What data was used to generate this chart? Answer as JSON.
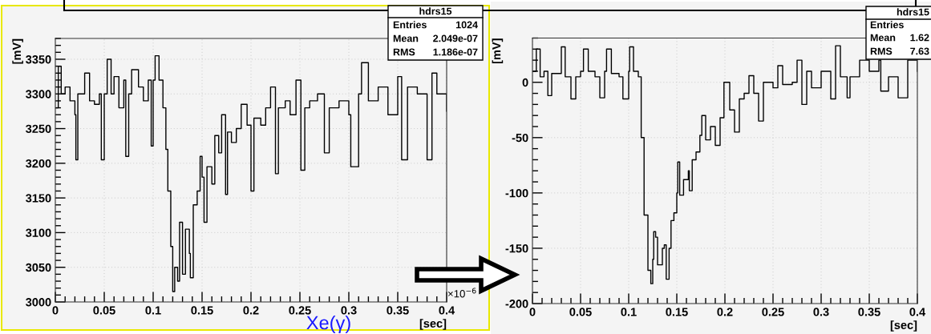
{
  "chart_data": [
    {
      "type": "step",
      "xlabel": "[sec]",
      "ylabel": "[mV]",
      "xlim": [
        0,
        0.4
      ],
      "ylim": [
        3000,
        3380
      ],
      "xticks": [
        0,
        0.05,
        0.1,
        0.15,
        0.2,
        0.25,
        0.3,
        0.35,
        0.4
      ],
      "yticks": [
        3000,
        3050,
        3100,
        3150,
        3200,
        3250,
        3300,
        3350
      ],
      "grid": true,
      "annotations": [
        "hdrs15",
        "Entries",
        "1024",
        "Mean",
        "2.049e-07",
        "RMS",
        "1.186e-07",
        "×10$^{−6}$",
        "Xe(γ)"
      ],
      "series": [
        {
          "color": "#000000",
          "x": [
            0,
            0.003,
            0.006,
            0.01,
            0.015,
            0.02,
            0.021,
            0.023,
            0.03,
            0.035,
            0.04,
            0.045,
            0.047,
            0.05,
            0.053,
            0.057,
            0.06,
            0.065,
            0.07,
            0.072,
            0.075,
            0.078,
            0.085,
            0.09,
            0.095,
            0.098,
            0.1,
            0.102,
            0.106,
            0.11,
            0.113,
            0.115,
            0.118,
            0.12,
            0.122,
            0.125,
            0.127,
            0.13,
            0.133,
            0.137,
            0.138,
            0.141,
            0.145,
            0.148,
            0.15,
            0.152,
            0.155,
            0.16,
            0.163,
            0.167,
            0.17,
            0.174,
            0.176,
            0.18,
            0.185,
            0.19,
            0.196,
            0.2,
            0.203,
            0.21,
            0.215,
            0.22,
            0.225,
            0.228,
            0.235,
            0.24,
            0.246,
            0.251,
            0.255,
            0.26,
            0.268,
            0.275,
            0.28,
            0.29,
            0.3,
            0.302,
            0.31,
            0.313,
            0.32,
            0.33,
            0.34,
            0.35,
            0.354,
            0.36,
            0.37,
            0.38,
            0.385,
            0.39,
            0.4
          ],
          "values": [
            3280,
            3340,
            3300,
            3310,
            3290,
            3270,
            3205,
            3300,
            3330,
            3290,
            3285,
            3300,
            3205,
            3300,
            3350,
            3300,
            3325,
            3280,
            3320,
            3210,
            3300,
            3335,
            3310,
            3290,
            3320,
            3225,
            3320,
            3355,
            3320,
            3280,
            3220,
            3160,
            3080,
            3015,
            3050,
            3030,
            3115,
            3040,
            3105,
            3070,
            3035,
            3140,
            3160,
            3210,
            3180,
            3115,
            3195,
            3170,
            3240,
            3215,
            3270,
            3155,
            3245,
            3230,
            3250,
            3285,
            3255,
            3160,
            3265,
            3255,
            3280,
            3310,
            3185,
            3280,
            3290,
            3270,
            3320,
            3190,
            3280,
            3290,
            3300,
            3215,
            3280,
            3290,
            3270,
            3195,
            3300,
            3345,
            3290,
            3310,
            3270,
            3325,
            3205,
            3310,
            3300,
            3205,
            3330,
            3300,
            3275
          ]
        }
      ]
    },
    {
      "type": "step",
      "xlabel": "[sec]",
      "ylabel": "[mV]",
      "xlim": [
        0,
        0.4
      ],
      "ylim": [
        -200,
        40
      ],
      "xticks": [
        0,
        0.05,
        0.1,
        0.15,
        0.2,
        0.25,
        0.3,
        0.35,
        0.4
      ],
      "yticks": [
        -200,
        -150,
        -100,
        -50,
        0
      ],
      "grid": true,
      "annotations": [
        "hdrs15",
        "Entries",
        "Mean",
        "1.62",
        "RMS",
        "7.63"
      ],
      "series": [
        {
          "color": "#000000",
          "x": [
            0,
            0.004,
            0.008,
            0.012,
            0.016,
            0.02,
            0.028,
            0.03,
            0.034,
            0.04,
            0.045,
            0.05,
            0.053,
            0.058,
            0.065,
            0.07,
            0.075,
            0.077,
            0.082,
            0.09,
            0.094,
            0.1,
            0.101,
            0.105,
            0.11,
            0.113,
            0.116,
            0.12,
            0.123,
            0.125,
            0.126,
            0.128,
            0.13,
            0.135,
            0.137,
            0.139,
            0.142,
            0.144,
            0.147,
            0.15,
            0.151,
            0.153,
            0.157,
            0.162,
            0.163,
            0.166,
            0.17,
            0.174,
            0.176,
            0.18,
            0.185,
            0.19,
            0.195,
            0.199,
            0.205,
            0.21,
            0.215,
            0.22,
            0.225,
            0.23,
            0.235,
            0.24,
            0.25,
            0.255,
            0.26,
            0.27,
            0.275,
            0.28,
            0.285,
            0.29,
            0.3,
            0.31,
            0.315,
            0.32,
            0.327,
            0.33,
            0.34,
            0.35,
            0.36,
            0.362,
            0.37,
            0.38,
            0.39,
            0.4
          ],
          "values": [
            10,
            30,
            5,
            10,
            -12,
            8,
            8,
            32,
            5,
            -15,
            5,
            10,
            30,
            10,
            5,
            -14,
            10,
            30,
            8,
            5,
            -15,
            10,
            32,
            10,
            5,
            -50,
            -120,
            -170,
            -182,
            -160,
            -135,
            -140,
            -165,
            -150,
            -147,
            -178,
            -150,
            -125,
            -118,
            -100,
            -72,
            -102,
            -88,
            -80,
            -98,
            -70,
            -63,
            -48,
            -30,
            -52,
            -40,
            -57,
            -32,
            0,
            -25,
            -45,
            -15,
            -10,
            6,
            -10,
            -35,
            0,
            -5,
            15,
            -2,
            0,
            20,
            -20,
            10,
            -5,
            10,
            -15,
            33,
            5,
            -14,
            5,
            20,
            10,
            20,
            -8,
            5,
            -14,
            20,
            10
          ]
        }
      ]
    }
  ]
}
